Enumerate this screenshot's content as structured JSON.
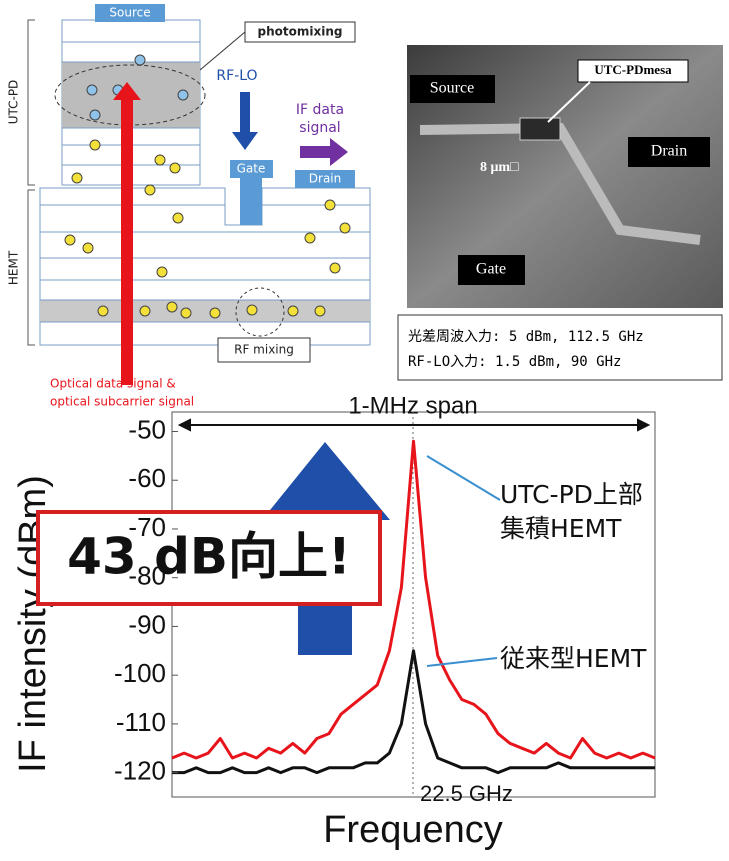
{
  "diagram": {
    "source": "Source",
    "photomixing": "photomixing",
    "rf_lo": "RF-LO",
    "if_signal": [
      "IF data",
      "signal"
    ],
    "gate": "Gate",
    "drain": "Drain",
    "utc_pd": "UTC-PD",
    "hemt": "HEMT",
    "rf_mixing": "RF mixing",
    "optical": [
      "Optical data signal &",
      "optical subcarrier signal"
    ]
  },
  "photo": {
    "source": "Source",
    "mesa": "UTC-PDmesa",
    "drain": "Drain",
    "scale": "8 μm□",
    "gate": "Gate"
  },
  "conditions": [
    "光差周波入力: 5 dBm, 112.5 GHz",
    "RF-LO入力: 1.5 dBm, 90 GHz"
  ],
  "chart_data": {
    "type": "line",
    "span_label": "1-MHz span",
    "xlabel": "Frequency",
    "ylabel": "IF intensity (dBm)",
    "center_label": "22.5 GHz",
    "callout": "43 dB向上!",
    "x": [
      -0.5,
      -0.475,
      -0.45,
      -0.425,
      -0.4,
      -0.375,
      -0.35,
      -0.325,
      -0.3,
      -0.275,
      -0.25,
      -0.225,
      -0.2,
      -0.175,
      -0.15,
      -0.125,
      -0.1,
      -0.075,
      -0.05,
      -0.025,
      0,
      0.025,
      0.05,
      0.075,
      0.1,
      0.125,
      0.15,
      0.175,
      0.2,
      0.225,
      0.25,
      0.275,
      0.3,
      0.325,
      0.35,
      0.375,
      0.4,
      0.425,
      0.45,
      0.475,
      0.5
    ],
    "xlim": [
      -0.5,
      0.5
    ],
    "ylim": [
      -125,
      -46
    ],
    "yticks": [
      -50,
      -60,
      -70,
      -80,
      -90,
      -100,
      -110,
      -120
    ],
    "series": [
      {
        "name": "UTC-PD上部集積HEMT",
        "color": "#e8141b",
        "values": [
          -117,
          -116,
          -117,
          -116,
          -113,
          -117,
          -116,
          -117,
          -115,
          -116,
          -114,
          -116,
          -113,
          -112,
          -108,
          -106,
          -104,
          -102,
          -95,
          -82,
          -52,
          -80,
          -96,
          -101,
          -105,
          -106,
          -108,
          -112,
          -114,
          -115,
          -116,
          -114,
          -116,
          -117,
          -113,
          -116,
          -117,
          -116,
          -117,
          -116,
          -117
        ]
      },
      {
        "name": "従来型HEMT",
        "color": "#111111",
        "values": [
          -120,
          -120,
          -119,
          -120,
          -120,
          -119,
          -120,
          -120,
          -119,
          -120,
          -119,
          -119,
          -120,
          -119,
          -119,
          -119,
          -118,
          -118,
          -116,
          -110,
          -95,
          -110,
          -117,
          -118,
          -119,
          -119,
          -119,
          -120,
          -119,
          -119,
          -119,
          -119,
          -118,
          -119,
          -119,
          -119,
          -119,
          -119,
          -119,
          -119,
          -119
        ]
      }
    ]
  }
}
